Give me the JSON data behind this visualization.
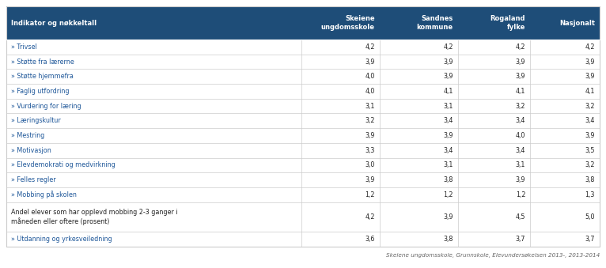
{
  "header_bg": "#1e4d78",
  "header_fg": "#ffffff",
  "border_color": "#cccccc",
  "link_color": "#1e5799",
  "text_color_black": "#222222",
  "footer_color": "#666666",
  "col_header": "Indikator og nøkkeltall",
  "col1": "Skeiene\nungdomsskole",
  "col2": "Sandnes\nkommune",
  "col3": "Rogaland\nfylke",
  "col4": "Nasjonalt",
  "rows": [
    {
      "label": "» Trivsel",
      "link": true,
      "vals": [
        4.2,
        4.2,
        4.2,
        4.2
      ]
    },
    {
      "label": "» Støtte fra lærerne",
      "link": true,
      "vals": [
        3.9,
        3.9,
        3.9,
        3.9
      ]
    },
    {
      "label": "» Støtte hjemmefra",
      "link": true,
      "vals": [
        4.0,
        3.9,
        3.9,
        3.9
      ]
    },
    {
      "label": "» Faglig utfordring",
      "link": true,
      "vals": [
        4.0,
        4.1,
        4.1,
        4.1
      ]
    },
    {
      "label": "» Vurdering for læring",
      "link": true,
      "vals": [
        3.1,
        3.1,
        3.2,
        3.2
      ]
    },
    {
      "label": "» Læringskultur",
      "link": true,
      "vals": [
        3.2,
        3.4,
        3.4,
        3.4
      ]
    },
    {
      "label": "» Mestring",
      "link": true,
      "vals": [
        3.9,
        3.9,
        4.0,
        3.9
      ]
    },
    {
      "label": "» Motivasjon",
      "link": true,
      "vals": [
        3.3,
        3.4,
        3.4,
        3.5
      ]
    },
    {
      "label": "» Elevdemokrati og medvirkning",
      "link": true,
      "vals": [
        3.0,
        3.1,
        3.1,
        3.2
      ]
    },
    {
      "label": "» Felles regler",
      "link": true,
      "vals": [
        3.9,
        3.8,
        3.9,
        3.8
      ]
    },
    {
      "label": "» Mobbing på skolen",
      "link": true,
      "vals": [
        1.2,
        1.2,
        1.2,
        1.3
      ]
    },
    {
      "label": "Andel elever som har opplevd mobbing 2-3 ganger i\nmåneden eller oftere (prosent)",
      "link": false,
      "vals": [
        4.2,
        3.9,
        4.5,
        5.0
      ]
    },
    {
      "label": "» Utdanning og yrkesveiledning",
      "link": true,
      "vals": [
        3.6,
        3.8,
        3.7,
        3.7
      ]
    }
  ],
  "footer": "Skeiene ungdomsskole, Grunnskole, Elevundersøkelsen 2013-, 2013-2014",
  "fig_width": 7.66,
  "fig_height": 3.39,
  "dpi": 100
}
